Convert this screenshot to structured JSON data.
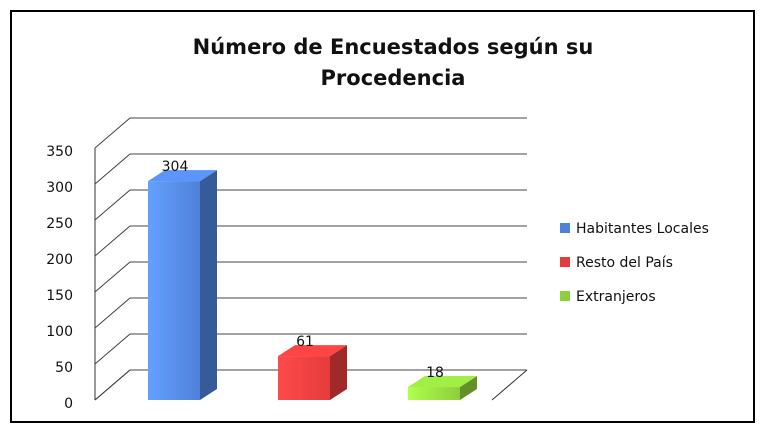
{
  "chart_data": {
    "type": "bar3d",
    "title": "Número de Encuestados según su Procedencia",
    "categories": [
      null
    ],
    "series": [
      {
        "name": "Habitantes Locales",
        "color": "#4f81d9",
        "values": [
          304
        ]
      },
      {
        "name": "Resto del País",
        "color": "#e53b3b",
        "values": [
          61
        ]
      },
      {
        "name": "Extranjeros",
        "color": "#8ccf3c",
        "values": [
          18
        ]
      }
    ],
    "ylim": [
      0,
      350
    ],
    "yticks": [
      0,
      50,
      100,
      150,
      200,
      250,
      300,
      350
    ],
    "grid": true,
    "legend": "right"
  }
}
